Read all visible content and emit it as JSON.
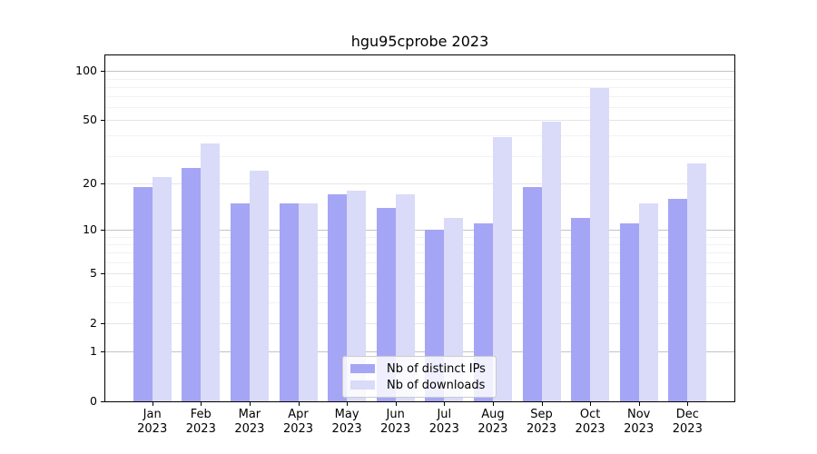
{
  "title": "hgu95cprobe 2023",
  "legend": {
    "items": [
      {
        "label": "Nb of distinct IPs",
        "color": "#a5a5f5"
      },
      {
        "label": "Nb of downloads",
        "color": "#dadaf9"
      }
    ]
  },
  "chart_data": {
    "type": "bar",
    "title": "hgu95cprobe 2023",
    "categories": [
      "Jan 2023",
      "Feb 2023",
      "Mar 2023",
      "Apr 2023",
      "May 2023",
      "Jun 2023",
      "Jul 2023",
      "Aug 2023",
      "Sep 2023",
      "Oct 2023",
      "Nov 2023",
      "Dec 2023"
    ],
    "series": [
      {
        "name": "Nb of distinct IPs",
        "color": "#a5a5f5",
        "values": [
          19,
          25,
          15,
          15,
          17,
          14,
          10,
          11,
          19,
          12,
          11,
          16
        ]
      },
      {
        "name": "Nb of downloads",
        "color": "#dadaf9",
        "values": [
          22,
          36,
          24,
          15,
          18,
          17,
          12,
          39,
          49,
          79,
          15,
          27
        ]
      }
    ],
    "xlabel": "",
    "ylabel": "",
    "yscale": "log1p",
    "ylim": [
      0,
      125
    ],
    "yticks": [
      0,
      1,
      2,
      5,
      10,
      20,
      50,
      100
    ],
    "minor_gridlines": [
      3,
      4,
      6,
      7,
      8,
      9,
      30,
      40,
      60,
      70,
      80,
      90
    ],
    "grid": true,
    "legend_position": "lower center"
  }
}
